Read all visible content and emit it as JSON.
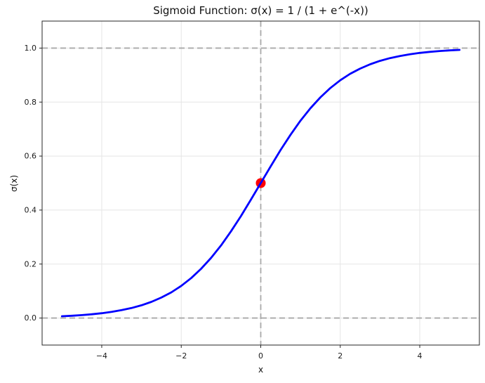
{
  "chart_data": {
    "type": "line",
    "title": "Sigmoid Function: σ(x) = 1 / (1 + e^(-x))",
    "xlabel": "x",
    "ylabel": "σ(x)",
    "xlim": [
      -5.5,
      5.5
    ],
    "ylim": [
      -0.1,
      1.1
    ],
    "xticks": [
      -4,
      -2,
      0,
      2,
      4
    ],
    "xtick_labels": [
      "−4",
      "−2",
      "0",
      "2",
      "4"
    ],
    "yticks": [
      0.0,
      0.2,
      0.4,
      0.6,
      0.8,
      1.0
    ],
    "ytick_labels": [
      "0.0",
      "0.2",
      "0.4",
      "0.6",
      "0.8",
      "1.0"
    ],
    "grid": true,
    "legend": null,
    "colors": {
      "curve": "#0000ff",
      "marker": "#ff0000",
      "reference": "#a9a9a9",
      "grid": "#e5e5e5",
      "spine": "#262626",
      "text": "#1a1a1a",
      "background": "#ffffff"
    },
    "series": [
      {
        "name": "sigmoid",
        "color": "#0000ff",
        "linewidth": 2.8,
        "x": [
          -5,
          -4.75,
          -4.5,
          -4.25,
          -4,
          -3.75,
          -3.5,
          -3.25,
          -3,
          -2.75,
          -2.5,
          -2.25,
          -2,
          -1.75,
          -1.5,
          -1.25,
          -1,
          -0.75,
          -0.5,
          -0.25,
          0,
          0.25,
          0.5,
          0.75,
          1,
          1.25,
          1.5,
          1.75,
          2,
          2.25,
          2.5,
          2.75,
          3,
          3.25,
          3.5,
          3.75,
          4,
          4.25,
          4.5,
          4.75,
          5
        ],
        "y": [
          0.0067,
          0.0086,
          0.011,
          0.0141,
          0.018,
          0.023,
          0.0293,
          0.0373,
          0.0474,
          0.0601,
          0.0759,
          0.0953,
          0.1192,
          0.148,
          0.1824,
          0.2227,
          0.2689,
          0.3208,
          0.3775,
          0.4378,
          0.5,
          0.5622,
          0.6225,
          0.6792,
          0.7311,
          0.7773,
          0.8176,
          0.852,
          0.8808,
          0.9047,
          0.9241,
          0.9399,
          0.9526,
          0.9627,
          0.9707,
          0.977,
          0.982,
          0.9859,
          0.989,
          0.9914,
          0.9933
        ]
      }
    ],
    "markers": [
      {
        "x": 0,
        "y": 0.5,
        "color": "#ff0000",
        "radius": 7
      }
    ],
    "reference_lines": [
      {
        "axis": "h",
        "value": 0.0,
        "style": "dashed",
        "color": "#a9a9a9"
      },
      {
        "axis": "h",
        "value": 1.0,
        "style": "dashed",
        "color": "#a9a9a9"
      },
      {
        "axis": "v",
        "value": 0.0,
        "style": "dashed",
        "color": "#a9a9a9"
      }
    ]
  }
}
